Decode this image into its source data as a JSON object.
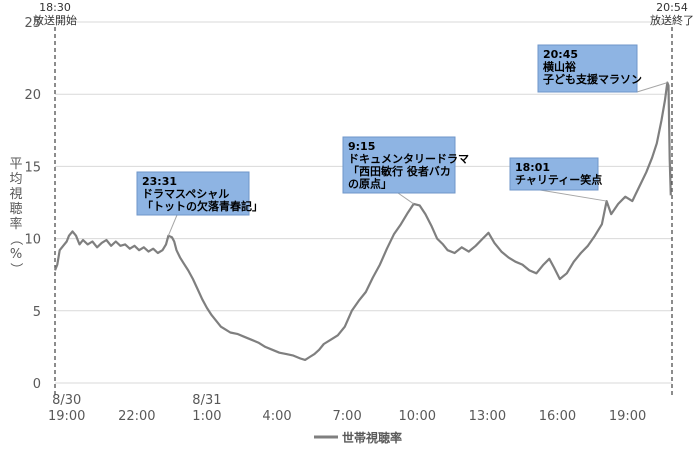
{
  "chart_data": {
    "type": "line",
    "ylabel": "平均視聴率（%）",
    "ylim": [
      0,
      25
    ],
    "yticks": [
      0,
      5,
      10,
      15,
      20,
      25
    ],
    "xlim": [
      0,
      26.4
    ],
    "xticks": [
      {
        "x": 0.5,
        "date": "8/30",
        "label": "19:00"
      },
      {
        "x": 3.5,
        "label": "22:00"
      },
      {
        "x": 6.5,
        "date": "8/31",
        "label": "1:00"
      },
      {
        "x": 9.5,
        "label": "4:00"
      },
      {
        "x": 12.5,
        "label": "7:00"
      },
      {
        "x": 15.5,
        "label": "10:00"
      },
      {
        "x": 18.5,
        "label": "13:00"
      },
      {
        "x": 21.5,
        "label": "16:00"
      },
      {
        "x": 24.5,
        "label": "19:00"
      }
    ],
    "grid": true,
    "legend": "bottom-center",
    "series": [
      {
        "name": "世帯視聴率",
        "color": "#7f7f7f",
        "points": [
          [
            0.0,
            7.8
          ],
          [
            0.1,
            8.2
          ],
          [
            0.2,
            9.2
          ],
          [
            0.35,
            9.5
          ],
          [
            0.5,
            9.8
          ],
          [
            0.6,
            10.2
          ],
          [
            0.75,
            10.5
          ],
          [
            0.9,
            10.2
          ],
          [
            1.05,
            9.6
          ],
          [
            1.2,
            9.9
          ],
          [
            1.4,
            9.6
          ],
          [
            1.6,
            9.8
          ],
          [
            1.8,
            9.4
          ],
          [
            2.0,
            9.7
          ],
          [
            2.2,
            9.9
          ],
          [
            2.4,
            9.5
          ],
          [
            2.6,
            9.8
          ],
          [
            2.8,
            9.5
          ],
          [
            3.0,
            9.6
          ],
          [
            3.2,
            9.3
          ],
          [
            3.4,
            9.5
          ],
          [
            3.6,
            9.2
          ],
          [
            3.8,
            9.4
          ],
          [
            4.0,
            9.1
          ],
          [
            4.2,
            9.3
          ],
          [
            4.4,
            9.0
          ],
          [
            4.6,
            9.2
          ],
          [
            4.75,
            9.6
          ],
          [
            4.85,
            10.2
          ],
          [
            5.0,
            10.1
          ],
          [
            5.1,
            9.8
          ],
          [
            5.2,
            9.2
          ],
          [
            5.35,
            8.7
          ],
          [
            5.5,
            8.3
          ],
          [
            5.7,
            7.8
          ],
          [
            5.9,
            7.2
          ],
          [
            6.1,
            6.5
          ],
          [
            6.3,
            5.8
          ],
          [
            6.5,
            5.2
          ],
          [
            6.7,
            4.7
          ],
          [
            6.9,
            4.3
          ],
          [
            7.1,
            3.9
          ],
          [
            7.3,
            3.7
          ],
          [
            7.5,
            3.5
          ],
          [
            7.8,
            3.4
          ],
          [
            8.1,
            3.2
          ],
          [
            8.4,
            3.0
          ],
          [
            8.7,
            2.8
          ],
          [
            9.0,
            2.5
          ],
          [
            9.3,
            2.3
          ],
          [
            9.6,
            2.1
          ],
          [
            9.9,
            2.0
          ],
          [
            10.2,
            1.9
          ],
          [
            10.5,
            1.7
          ],
          [
            10.7,
            1.6
          ],
          [
            10.9,
            1.8
          ],
          [
            11.1,
            2.0
          ],
          [
            11.3,
            2.3
          ],
          [
            11.5,
            2.7
          ],
          [
            11.8,
            3.0
          ],
          [
            12.1,
            3.3
          ],
          [
            12.4,
            3.9
          ],
          [
            12.7,
            5.0
          ],
          [
            13.0,
            5.7
          ],
          [
            13.3,
            6.3
          ],
          [
            13.6,
            7.3
          ],
          [
            13.9,
            8.2
          ],
          [
            14.2,
            9.3
          ],
          [
            14.5,
            10.3
          ],
          [
            14.8,
            11.0
          ],
          [
            15.1,
            11.8
          ],
          [
            15.35,
            12.4
          ],
          [
            15.6,
            12.3
          ],
          [
            15.85,
            11.7
          ],
          [
            16.1,
            10.9
          ],
          [
            16.35,
            10.0
          ],
          [
            16.6,
            9.6
          ],
          [
            16.8,
            9.2
          ],
          [
            17.1,
            9.0
          ],
          [
            17.4,
            9.4
          ],
          [
            17.7,
            9.1
          ],
          [
            18.0,
            9.5
          ],
          [
            18.3,
            10.0
          ],
          [
            18.55,
            10.4
          ],
          [
            18.8,
            9.7
          ],
          [
            19.1,
            9.1
          ],
          [
            19.4,
            8.7
          ],
          [
            19.7,
            8.4
          ],
          [
            20.0,
            8.2
          ],
          [
            20.3,
            7.8
          ],
          [
            20.6,
            7.6
          ],
          [
            20.9,
            8.2
          ],
          [
            21.15,
            8.6
          ],
          [
            21.35,
            8.0
          ],
          [
            21.6,
            7.2
          ],
          [
            21.9,
            7.6
          ],
          [
            22.2,
            8.4
          ],
          [
            22.5,
            9.0
          ],
          [
            22.8,
            9.5
          ],
          [
            23.1,
            10.2
          ],
          [
            23.4,
            11.0
          ],
          [
            23.6,
            12.6
          ],
          [
            23.8,
            11.7
          ],
          [
            24.1,
            12.4
          ],
          [
            24.4,
            12.9
          ],
          [
            24.7,
            12.6
          ],
          [
            25.0,
            13.6
          ],
          [
            25.3,
            14.6
          ],
          [
            25.55,
            15.6
          ],
          [
            25.75,
            16.6
          ],
          [
            25.95,
            18.2
          ],
          [
            26.1,
            19.6
          ],
          [
            26.2,
            20.8
          ],
          [
            26.25,
            20.6
          ],
          [
            26.3,
            15.5
          ],
          [
            26.35,
            13.0
          ]
        ]
      }
    ],
    "markers": [
      {
        "x": 0.0,
        "top_label_1": "18:30",
        "top_label_2": "放送開始"
      },
      {
        "x": 26.4,
        "top_label_1": "20:54",
        "top_label_2": "放送終了"
      }
    ],
    "annotations": [
      {
        "line1": "23:31",
        "line2": "ドラマスペシャル",
        "line3": "「トットの欠落青春記」",
        "x": 4.85,
        "y": 10.2
      },
      {
        "line1": "9:15",
        "line2": "ドキュメンタリードラマ",
        "line3": "「西田敏行 役者バカ",
        "line4": "の原点」",
        "x": 15.35,
        "y": 12.4
      },
      {
        "line1": "18:01",
        "line2": "チャリティー笑点",
        "x": 23.6,
        "y": 12.6
      },
      {
        "line1": "20:45",
        "line2": "横山裕",
        "line3": "子ども支援マラソン",
        "x": 26.2,
        "y": 20.8
      }
    ],
    "colors": {
      "line": "#7f7f7f",
      "callout_fill": "#8eb4e3",
      "callout_stroke": "#6f96c8",
      "grid": "#d9d9d9"
    }
  }
}
